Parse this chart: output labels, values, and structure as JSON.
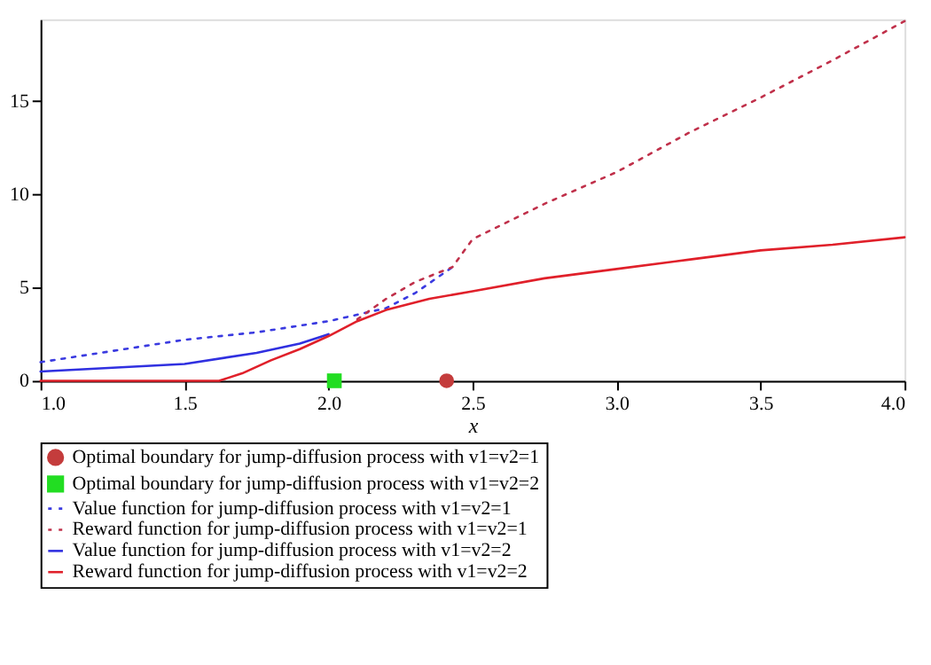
{
  "chart_data": {
    "type": "line",
    "xlabel": "x",
    "xlim": [
      1.0,
      4.0
    ],
    "ylim": [
      0,
      19.4
    ],
    "xticks": [
      {
        "value": 1.0,
        "label": "1.0"
      },
      {
        "value": 1.5,
        "label": "1.5"
      },
      {
        "value": 2.0,
        "label": "2.0"
      },
      {
        "value": 2.5,
        "label": "2.5"
      },
      {
        "value": 3.0,
        "label": "3.0"
      },
      {
        "value": 3.5,
        "label": "3.5"
      },
      {
        "value": 4.0,
        "label": "4.0"
      }
    ],
    "yticks": [
      0,
      5,
      10,
      15
    ],
    "grid": false,
    "legend": "bottom",
    "series": [
      {
        "name": "Optimal boundary for jump-diffusion process with v1=v2=1",
        "type": "scatter",
        "marker": "circle",
        "color": "#c43c3c",
        "x": [
          2.41
        ],
        "values": [
          0
        ]
      },
      {
        "name": "Optimal boundary for jump-diffusion process with v1=v2=2",
        "type": "scatter",
        "marker": "square",
        "color": "#22dd22",
        "x": [
          2.02
        ],
        "values": [
          0
        ]
      },
      {
        "name": "Value function for jump-diffusion process with v1=v2=1",
        "line_style": "dotted",
        "color": "#3a3ae0",
        "x": [
          1.0,
          1.25,
          1.5,
          1.75,
          2.0,
          2.2,
          2.3,
          2.43
        ],
        "values": [
          1.0,
          1.6,
          2.2,
          2.6,
          3.2,
          3.9,
          4.7,
          6.1
        ]
      },
      {
        "name": "Reward function for jump-diffusion process with v1=v2=1",
        "line_style": "dotted",
        "color": "#c0304a",
        "x": [
          2.1,
          2.2,
          2.3,
          2.43,
          2.5,
          2.75,
          3.0,
          3.25,
          3.5,
          3.75,
          4.0
        ],
        "values": [
          3.3,
          4.4,
          5.3,
          6.1,
          7.6,
          9.5,
          11.2,
          13.3,
          15.2,
          17.2,
          19.3
        ]
      },
      {
        "name": "Value function for jump-diffusion process with v1=v2=2",
        "line_style": "solid",
        "color": "#3030e0",
        "x": [
          1.0,
          1.25,
          1.5,
          1.75,
          1.9,
          2.0
        ],
        "values": [
          0.5,
          0.7,
          0.9,
          1.5,
          2.0,
          2.5
        ]
      },
      {
        "name": "Reward function for jump-diffusion process with v1=v2=2",
        "line_style": "solid",
        "color": "#e0202a",
        "x": [
          1.0,
          1.62,
          1.7,
          1.8,
          1.9,
          2.0,
          2.1,
          2.2,
          2.35,
          2.5,
          2.75,
          3.0,
          3.25,
          3.5,
          3.75,
          4.0
        ],
        "values": [
          0,
          0,
          0.4,
          1.1,
          1.7,
          2.4,
          3.2,
          3.8,
          4.4,
          4.8,
          5.5,
          6.0,
          6.5,
          7.0,
          7.3,
          7.7
        ]
      }
    ]
  }
}
